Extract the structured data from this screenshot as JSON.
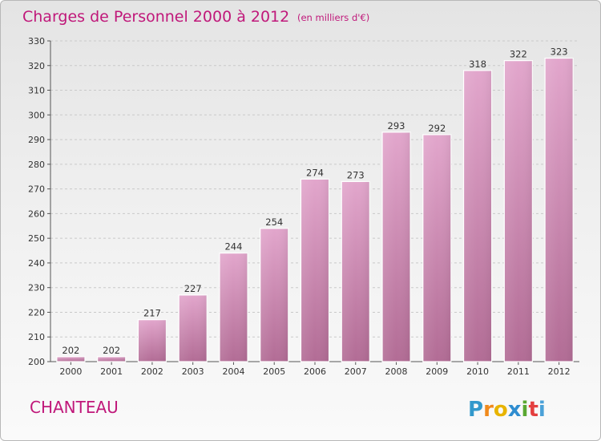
{
  "chart_data": {
    "type": "bar",
    "title": "Charges de Personnel 2000 à 2012",
    "subtitle": "(en milliers d'€)",
    "categories": [
      "2000",
      "2001",
      "2002",
      "2003",
      "2004",
      "2005",
      "2006",
      "2007",
      "2008",
      "2009",
      "2010",
      "2011",
      "2012"
    ],
    "values": [
      202,
      202,
      217,
      227,
      244,
      254,
      274,
      273,
      293,
      292,
      318,
      322,
      323
    ],
    "ylim": [
      200,
      330
    ],
    "yticks": [
      200,
      210,
      220,
      230,
      240,
      250,
      260,
      270,
      280,
      290,
      300,
      310,
      320,
      330
    ],
    "grid": true,
    "bar_color_top": "#e2a6cc",
    "bar_color_bottom": "#b26c95",
    "title_color": "#c0187a"
  },
  "commune": "CHANTEAU",
  "logo": {
    "text": "Proxiti",
    "letters": [
      {
        "ch": "P",
        "color": "#3399cc"
      },
      {
        "ch": "r",
        "color": "#f08a1d"
      },
      {
        "ch": "o",
        "color": "#e8b400"
      },
      {
        "ch": "x",
        "color": "#2f8dd0"
      },
      {
        "ch": "i",
        "color": "#5aa832"
      },
      {
        "ch": "t",
        "color": "#e43f3f"
      },
      {
        "ch": "i",
        "color": "#4aa1d8"
      }
    ]
  }
}
